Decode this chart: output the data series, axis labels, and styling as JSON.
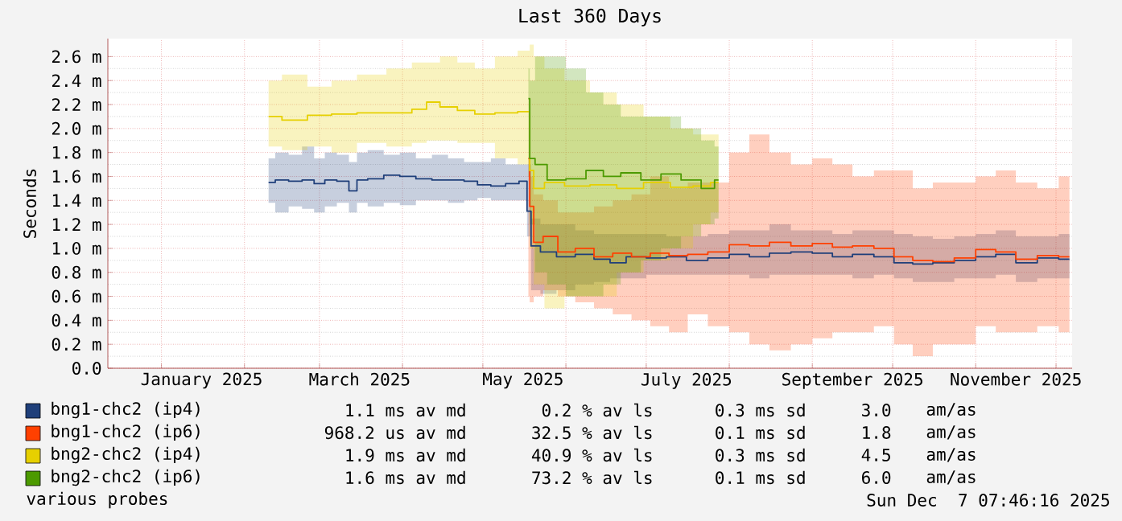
{
  "chart_data": {
    "type": "step",
    "title": "Last 360 Days",
    "ylabel": "Seconds",
    "xlim": [
      "2024-12-12",
      "2025-12-07"
    ],
    "ylim": [
      0,
      2.75
    ],
    "xticks": [
      {
        "value": "2025-01-01",
        "label": null
      },
      {
        "value": "2025-01-16",
        "label": "January 2025"
      },
      {
        "value": "2025-02-01",
        "label": null
      },
      {
        "value": "2025-03-01",
        "label": null
      },
      {
        "value": "2025-03-16",
        "label": "March 2025"
      },
      {
        "value": "2025-04-01",
        "label": null
      },
      {
        "value": "2025-05-01",
        "label": null
      },
      {
        "value": "2025-05-16",
        "label": "May 2025"
      },
      {
        "value": "2025-06-01",
        "label": null
      },
      {
        "value": "2025-07-01",
        "label": null
      },
      {
        "value": "2025-07-16",
        "label": "July 2025"
      },
      {
        "value": "2025-08-01",
        "label": null
      },
      {
        "value": "2025-09-01",
        "label": null
      },
      {
        "value": "2025-09-16",
        "label": "September 2025"
      },
      {
        "value": "2025-10-01",
        "label": null
      },
      {
        "value": "2025-11-01",
        "label": null
      },
      {
        "value": "2025-11-16",
        "label": "November 2025"
      },
      {
        "value": "2025-12-01",
        "label": null
      }
    ],
    "yticks": [
      {
        "value": 0,
        "label": "0.0"
      },
      {
        "value": 0.2,
        "label": "0.2 m"
      },
      {
        "value": 0.4,
        "label": "0.4 m"
      },
      {
        "value": 0.6,
        "label": "0.6 m"
      },
      {
        "value": 0.8,
        "label": "0.8 m"
      },
      {
        "value": 1.0,
        "label": "1.0 m"
      },
      {
        "value": 1.2,
        "label": "1.2 m"
      },
      {
        "value": 1.4,
        "label": "1.4 m"
      },
      {
        "value": 1.6,
        "label": "1.6 m"
      },
      {
        "value": 1.8,
        "label": "1.8 m"
      },
      {
        "value": 2.0,
        "label": "2.0 m"
      },
      {
        "value": 2.2,
        "label": "2.2 m"
      },
      {
        "value": 2.4,
        "label": "2.4 m"
      },
      {
        "value": 2.6,
        "label": "2.6 m"
      }
    ],
    "grid": true,
    "legend": "bottom",
    "series": [
      {
        "name": "bng1-chc2 (ip4)",
        "color": "#1f3f7a",
        "x": [
          "2025-02-10",
          "2025-02-15",
          "2025-02-20",
          "2025-02-25",
          "2025-03-01",
          "2025-03-05",
          "2025-03-10",
          "2025-03-14",
          "2025-03-16",
          "2025-03-22",
          "2025-03-28",
          "2025-04-03",
          "2025-04-09",
          "2025-04-15",
          "2025-04-21",
          "2025-04-27",
          "2025-05-01",
          "2025-05-07",
          "2025-05-12",
          "2025-05-17",
          "2025-05-18",
          "2025-05-20",
          "2025-05-25",
          "2025-06-01",
          "2025-06-08",
          "2025-06-15",
          "2025-06-20",
          "2025-06-27",
          "2025-07-05",
          "2025-07-12",
          "2025-07-20",
          "2025-07-28",
          "2025-08-05",
          "2025-08-12",
          "2025-08-20",
          "2025-08-28",
          "2025-09-05",
          "2025-09-12",
          "2025-09-20",
          "2025-09-28",
          "2025-10-05",
          "2025-10-12",
          "2025-10-20",
          "2025-10-28",
          "2025-11-05",
          "2025-11-12",
          "2025-11-20",
          "2025-11-28",
          "2025-12-06"
        ],
        "values": [
          1.55,
          1.57,
          1.56,
          1.57,
          1.54,
          1.57,
          1.56,
          1.48,
          1.57,
          1.58,
          1.61,
          1.6,
          1.58,
          1.57,
          1.57,
          1.56,
          1.53,
          1.52,
          1.54,
          1.56,
          1.31,
          1.02,
          0.97,
          0.93,
          0.95,
          0.91,
          0.88,
          0.93,
          0.92,
          0.93,
          0.9,
          0.92,
          0.95,
          0.93,
          0.96,
          0.97,
          0.96,
          0.93,
          0.95,
          0.93,
          0.88,
          0.87,
          0.88,
          0.9,
          0.93,
          0.95,
          0.88,
          0.92,
          0.91
        ],
        "lower": [
          1.38,
          1.3,
          1.35,
          1.33,
          1.3,
          1.35,
          1.38,
          1.3,
          1.38,
          1.35,
          1.38,
          1.36,
          1.4,
          1.4,
          1.38,
          1.4,
          1.42,
          1.4,
          1.4,
          1.4,
          1.1,
          0.65,
          0.62,
          0.65,
          0.7,
          0.72,
          0.75,
          0.75,
          0.78,
          0.78,
          0.78,
          0.78,
          0.78,
          0.75,
          0.78,
          0.78,
          0.78,
          0.78,
          0.75,
          0.78,
          0.75,
          0.72,
          0.72,
          0.75,
          0.75,
          0.78,
          0.72,
          0.75,
          0.75
        ],
        "upper": [
          1.75,
          1.8,
          1.78,
          1.85,
          1.75,
          1.8,
          1.78,
          1.72,
          1.8,
          1.82,
          1.78,
          1.8,
          1.75,
          1.78,
          1.75,
          1.72,
          1.72,
          1.75,
          1.7,
          1.7,
          1.7,
          1.25,
          1.2,
          1.2,
          1.15,
          1.12,
          1.12,
          1.12,
          1.12,
          1.1,
          1.1,
          1.12,
          1.15,
          1.15,
          1.2,
          1.15,
          1.15,
          1.12,
          1.15,
          1.15,
          1.12,
          1.1,
          1.08,
          1.1,
          1.12,
          1.15,
          1.1,
          1.1,
          1.12
        ]
      },
      {
        "name": "bng1-chc2 (ip6)",
        "color": "#ff4000",
        "x": [
          "2025-05-18",
          "2025-05-19",
          "2025-05-21",
          "2025-05-26",
          "2025-06-01",
          "2025-06-08",
          "2025-06-15",
          "2025-06-22",
          "2025-06-29",
          "2025-07-06",
          "2025-07-13",
          "2025-07-20",
          "2025-07-28",
          "2025-08-05",
          "2025-08-12",
          "2025-08-20",
          "2025-08-28",
          "2025-09-05",
          "2025-09-12",
          "2025-09-20",
          "2025-09-28",
          "2025-10-05",
          "2025-10-12",
          "2025-10-20",
          "2025-10-28",
          "2025-11-05",
          "2025-11-12",
          "2025-11-20",
          "2025-11-28",
          "2025-12-06"
        ],
        "values": [
          1.75,
          1.35,
          1.05,
          1.1,
          0.97,
          1.0,
          0.93,
          0.96,
          0.93,
          0.96,
          0.94,
          0.95,
          0.97,
          1.03,
          1.02,
          1.05,
          1.02,
          1.04,
          1.01,
          1.02,
          1.0,
          0.93,
          0.9,
          0.89,
          0.92,
          0.99,
          0.97,
          0.91,
          0.94,
          0.93
        ],
        "lower": [
          0.6,
          0.55,
          0.6,
          0.65,
          0.6,
          0.55,
          0.5,
          0.45,
          0.4,
          0.35,
          0.3,
          0.45,
          0.35,
          0.3,
          0.2,
          0.15,
          0.2,
          0.25,
          0.3,
          0.3,
          0.35,
          0.2,
          0.1,
          0.2,
          0.2,
          0.35,
          0.3,
          0.3,
          0.35,
          0.3
        ],
        "upper": [
          1.75,
          1.6,
          1.45,
          1.4,
          1.3,
          1.3,
          1.35,
          1.4,
          1.45,
          1.6,
          1.5,
          1.55,
          1.55,
          1.8,
          1.95,
          1.8,
          1.7,
          1.75,
          1.7,
          1.6,
          1.65,
          1.65,
          1.5,
          1.55,
          1.55,
          1.6,
          1.65,
          1.55,
          1.5,
          1.6
        ]
      },
      {
        "name": "bng2-chc2 (ip4)",
        "color": "#e6d000",
        "x": [
          "2025-02-10",
          "2025-02-20",
          "2025-03-01",
          "2025-03-10",
          "2025-03-20",
          "2025-04-01",
          "2025-04-08",
          "2025-04-12",
          "2025-04-18",
          "2025-04-25",
          "2025-05-01",
          "2025-05-10",
          "2025-05-18",
          "2025-05-19",
          "2025-05-21",
          "2025-05-27",
          "2025-06-05",
          "2025-06-15",
          "2025-06-25",
          "2025-07-05",
          "2025-07-15",
          "2025-07-22",
          "2025-07-28"
        ],
        "values": [
          2.1,
          2.07,
          2.11,
          2.12,
          2.13,
          2.13,
          2.16,
          2.22,
          2.18,
          2.15,
          2.12,
          2.13,
          2.14,
          1.65,
          1.5,
          1.55,
          1.52,
          1.53,
          1.5,
          1.55,
          1.51,
          1.52,
          1.55
        ],
        "lower": [
          1.85,
          1.82,
          1.85,
          1.8,
          1.88,
          1.85,
          1.88,
          1.9,
          1.9,
          1.88,
          1.88,
          1.75,
          1.7,
          1.0,
          0.7,
          0.5,
          0.6,
          0.6,
          0.8,
          0.9,
          1.0,
          1.2,
          1.3
        ],
        "upper": [
          2.4,
          2.45,
          2.35,
          2.4,
          2.45,
          2.5,
          2.55,
          2.55,
          2.6,
          2.55,
          2.5,
          2.6,
          2.65,
          2.7,
          2.6,
          2.5,
          2.4,
          2.3,
          2.2,
          2.1,
          2.0,
          1.95,
          1.95
        ]
      },
      {
        "name": "bng2-chc2 (ip6)",
        "color": "#4c9a00",
        "x": [
          "2025-05-18",
          "2025-05-19",
          "2025-05-22",
          "2025-05-28",
          "2025-06-05",
          "2025-06-12",
          "2025-06-18",
          "2025-06-25",
          "2025-07-03",
          "2025-07-10",
          "2025-07-18",
          "2025-07-25",
          "2025-07-28"
        ],
        "values": [
          2.25,
          1.75,
          1.7,
          1.57,
          1.58,
          1.65,
          1.6,
          1.63,
          1.57,
          1.62,
          1.57,
          1.5,
          1.57
        ],
        "lower": [
          1.6,
          1.2,
          0.8,
          0.7,
          0.6,
          0.6,
          0.7,
          0.8,
          0.9,
          1.0,
          1.1,
          1.2,
          1.25
        ],
        "upper": [
          2.5,
          2.4,
          2.6,
          2.6,
          2.5,
          2.3,
          2.2,
          2.1,
          2.1,
          2.1,
          2.0,
          1.9,
          1.85
        ]
      }
    ],
    "annotations": [
      "1.1 ms av md",
      "0.2 % av ls",
      "0.3 ms sd",
      "3.0",
      "am/as",
      "968.2 us av md",
      "32.5 % av ls",
      "0.1 ms sd",
      "1.8",
      "am/as",
      "1.9 ms av md",
      "40.9 % av ls",
      "0.3 ms sd",
      "4.5",
      "am/as",
      "1.6 ms av md",
      "73.2 % av ls",
      "0.1 ms sd",
      "6.0",
      "am/as",
      "various probes",
      "Sun Dec  7 07:46:16 2025"
    ]
  }
}
